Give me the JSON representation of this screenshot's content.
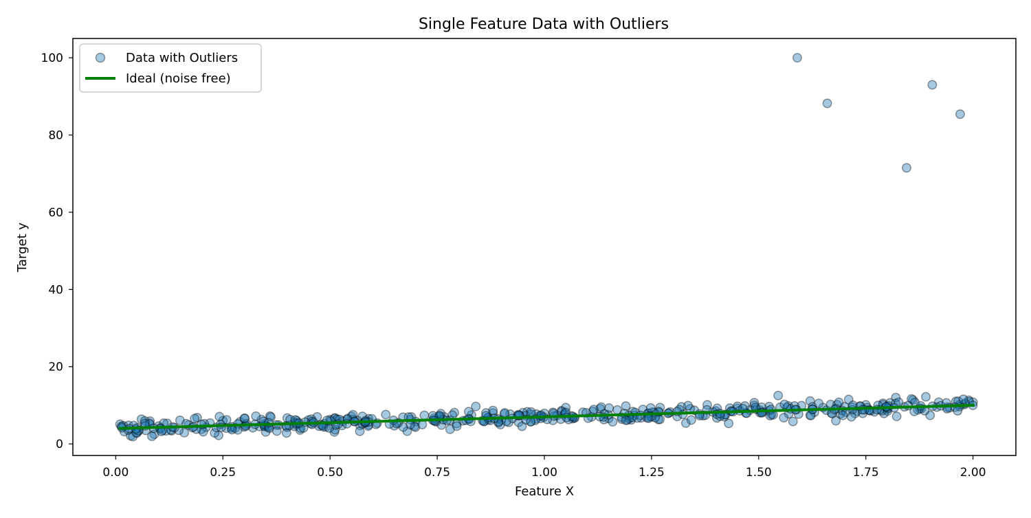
{
  "chart_data": {
    "type": "scatter",
    "title": "Single Feature Data with Outliers",
    "xlabel": "Feature X",
    "ylabel": "Target y",
    "xlim": [
      -0.1,
      2.1
    ],
    "ylim": [
      -3,
      105
    ],
    "xticks": [
      0.0,
      0.25,
      0.5,
      0.75,
      1.0,
      1.25,
      1.5,
      1.75,
      2.0
    ],
    "xtick_labels": [
      "0.00",
      "0.25",
      "0.50",
      "0.75",
      "1.00",
      "1.25",
      "1.50",
      "1.75",
      "2.00"
    ],
    "yticks": [
      0,
      20,
      40,
      60,
      80,
      100
    ],
    "ytick_labels": [
      "0",
      "20",
      "40",
      "60",
      "80",
      "100"
    ],
    "grid": false,
    "legend": {
      "position": "top-left",
      "entries": [
        "Data with Outliers",
        "Ideal (noise free)"
      ]
    },
    "series": [
      {
        "name": "Data with Outliers",
        "kind": "scatter",
        "color": "#1f77b4",
        "fill_opacity": 0.4,
        "edge_color": "#000000",
        "trend": {
          "x_range": [
            0.01,
            2.0
          ],
          "intercept": 4.0,
          "slope": 3.0,
          "noise_sd": 1.0
        },
        "count": 500,
        "points": [
          [
            0.01,
            5.1
          ],
          [
            0.02,
            3.2
          ],
          [
            0.03,
            4.8
          ],
          [
            0.035,
            2.1
          ],
          [
            0.04,
            1.9
          ],
          [
            0.05,
            4.2
          ],
          [
            0.06,
            6.4
          ],
          [
            0.07,
            3.5
          ],
          [
            0.08,
            5.9
          ],
          [
            0.09,
            2.5
          ],
          [
            0.1,
            4.6
          ],
          [
            0.12,
            5.3
          ],
          [
            0.13,
            3.4
          ],
          [
            0.15,
            6.1
          ],
          [
            0.16,
            2.9
          ],
          [
            0.17,
            4.9
          ],
          [
            0.19,
            6.8
          ],
          [
            0.2,
            3.8
          ],
          [
            0.22,
            5.4
          ],
          [
            0.24,
            2.2
          ],
          [
            0.25,
            6.0
          ],
          [
            0.27,
            4.1
          ],
          [
            0.29,
            5.7
          ],
          [
            0.3,
            6.6
          ],
          [
            0.32,
            4.2
          ],
          [
            0.34,
            6.3
          ],
          [
            0.35,
            3.1
          ],
          [
            0.36,
            7.2
          ],
          [
            0.38,
            4.9
          ],
          [
            0.4,
            6.7
          ],
          [
            0.42,
            5.0
          ],
          [
            0.43,
            3.6
          ],
          [
            0.45,
            6.2
          ],
          [
            0.47,
            7.0
          ],
          [
            0.49,
            4.4
          ],
          [
            0.5,
            6.3
          ],
          [
            0.51,
            3.1
          ],
          [
            0.53,
            5.9
          ],
          [
            0.55,
            7.1
          ],
          [
            0.57,
            4.8
          ],
          [
            0.59,
            6.5
          ],
          [
            0.61,
            5.4
          ],
          [
            0.63,
            7.6
          ],
          [
            0.65,
            4.7
          ],
          [
            0.67,
            6.9
          ],
          [
            0.68,
            3.3
          ],
          [
            0.7,
            5.8
          ],
          [
            0.72,
            7.4
          ],
          [
            0.74,
            6.1
          ],
          [
            0.76,
            4.9
          ],
          [
            0.78,
            3.8
          ],
          [
            0.79,
            8.1
          ],
          [
            0.81,
            6.0
          ],
          [
            0.83,
            7.5
          ],
          [
            0.84,
            9.7
          ],
          [
            0.86,
            5.9
          ],
          [
            0.88,
            8.0
          ],
          [
            0.9,
            6.2
          ],
          [
            0.92,
            7.7
          ],
          [
            0.94,
            5.6
          ],
          [
            0.96,
            8.3
          ],
          [
            0.98,
            6.5
          ],
          [
            1.0,
            7.9
          ],
          [
            1.02,
            6.1
          ],
          [
            1.04,
            8.6
          ],
          [
            1.05,
            9.4
          ],
          [
            1.07,
            6.7
          ],
          [
            1.09,
            8.2
          ],
          [
            1.11,
            7.0
          ],
          [
            1.13,
            9.1
          ],
          [
            1.15,
            6.6
          ],
          [
            1.17,
            8.8
          ],
          [
            1.19,
            9.8
          ],
          [
            1.21,
            7.4
          ],
          [
            1.23,
            8.9
          ],
          [
            1.25,
            7.0
          ],
          [
            1.27,
            9.4
          ],
          [
            1.29,
            8.0
          ],
          [
            1.31,
            7.1
          ],
          [
            1.32,
            9.6
          ],
          [
            1.33,
            5.4
          ],
          [
            1.35,
            8.7
          ],
          [
            1.37,
            7.3
          ],
          [
            1.38,
            10.1
          ],
          [
            1.4,
            8.5
          ],
          [
            1.42,
            7.5
          ],
          [
            1.43,
            5.3
          ],
          [
            1.45,
            9.2
          ],
          [
            1.47,
            8.0
          ],
          [
            1.49,
            10.0
          ],
          [
            1.51,
            8.3
          ],
          [
            1.53,
            7.6
          ],
          [
            1.55,
            9.5
          ],
          [
            1.57,
            7.8
          ],
          [
            1.58,
            5.8
          ],
          [
            1.6,
            9.9
          ],
          [
            1.62,
            11.1
          ],
          [
            1.63,
            8.2
          ],
          [
            1.65,
            9.4
          ],
          [
            1.67,
            8.0
          ],
          [
            1.68,
            6.0
          ],
          [
            1.7,
            9.6
          ],
          [
            1.71,
            11.5
          ],
          [
            1.73,
            8.5
          ],
          [
            1.75,
            10.1
          ],
          [
            1.77,
            8.3
          ],
          [
            1.79,
            10.5
          ],
          [
            1.8,
            9.0
          ],
          [
            1.82,
            12.0
          ],
          [
            1.84,
            9.6
          ],
          [
            1.86,
            11.4
          ],
          [
            1.88,
            9.2
          ],
          [
            1.89,
            12.2
          ],
          [
            1.9,
            7.4
          ],
          [
            1.92,
            10.8
          ],
          [
            1.94,
            9.5
          ],
          [
            1.96,
            11.0
          ],
          [
            1.98,
            10.2
          ],
          [
            1.99,
            11.3
          ],
          [
            2.0,
            10.8
          ],
          [
            1.59,
            100.0
          ],
          [
            1.66,
            88.2
          ],
          [
            1.845,
            71.5
          ],
          [
            1.905,
            93.0
          ],
          [
            1.97,
            85.4
          ]
        ]
      },
      {
        "name": "Ideal (noise free)",
        "kind": "line",
        "color": "#008000",
        "x": [
          0.01,
          2.0
        ],
        "y": [
          4.03,
          10.0
        ]
      }
    ]
  }
}
